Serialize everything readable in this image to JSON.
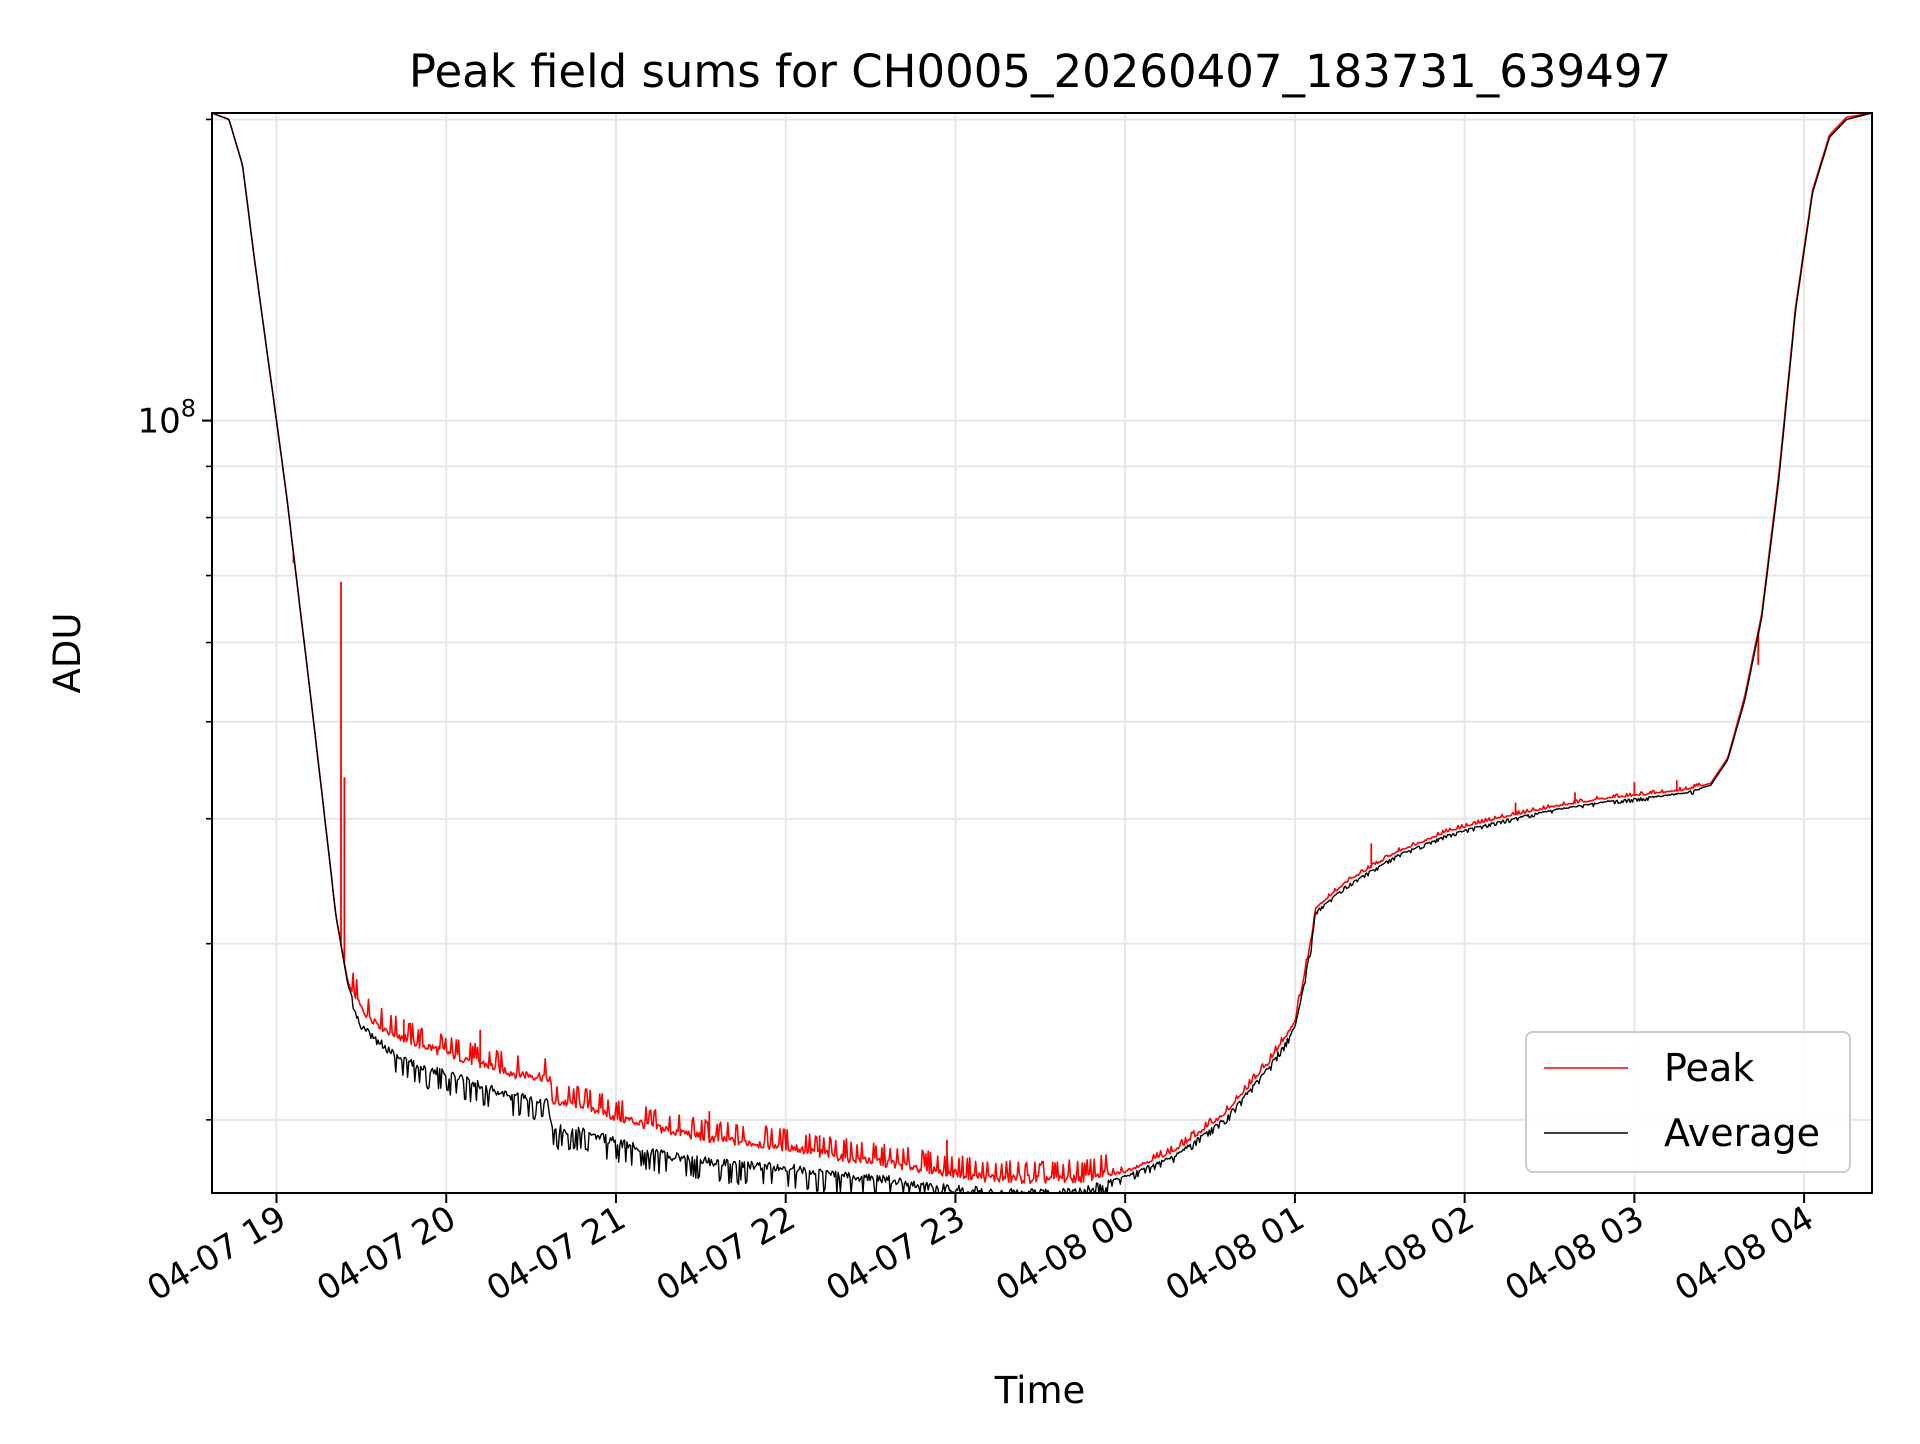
{
  "chart_data": {
    "type": "line",
    "title": "Peak field sums for CH0005_20260407_183731_639497",
    "xlabel": "Time",
    "ylabel": "ADU",
    "yscale": "log",
    "xlim_hours": [
      18.62,
      28.4
    ],
    "ylim": [
      16900000,
      203000000
    ],
    "x_ticks": [
      {
        "label": "04-07 19",
        "hours": 19
      },
      {
        "label": "04-07 20",
        "hours": 20
      },
      {
        "label": "04-07 21",
        "hours": 21
      },
      {
        "label": "04-07 22",
        "hours": 22
      },
      {
        "label": "04-07 23",
        "hours": 23
      },
      {
        "label": "04-08 00",
        "hours": 24
      },
      {
        "label": "04-08 01",
        "hours": 25
      },
      {
        "label": "04-08 02",
        "hours": 26
      },
      {
        "label": "04-08 03",
        "hours": 27
      },
      {
        "label": "04-08 04",
        "hours": 28
      }
    ],
    "y_major_tick": {
      "base": "10",
      "exponent": "8",
      "value": 100000000
    },
    "y_minor_ticks": [
      20000000,
      30000000,
      40000000,
      50000000,
      60000000,
      70000000,
      80000000,
      90000000,
      200000000
    ],
    "grid": true,
    "legend_position": "lower-right",
    "series": [
      {
        "name": "Peak",
        "color": "#ff0000",
        "x_hours": [
          18.62,
          18.72,
          18.8,
          18.87,
          18.93,
          19.0,
          19.06,
          19.12,
          19.19,
          19.25,
          19.3,
          19.35,
          19.42,
          19.5,
          19.65,
          19.85,
          20.1,
          20.4,
          20.6,
          20.62,
          20.8,
          21.0,
          21.3,
          21.6,
          22.0,
          22.3,
          22.6,
          22.9,
          23.2,
          23.5,
          23.75,
          24.0,
          24.3,
          24.6,
          24.85,
          25.0,
          25.05,
          25.1,
          25.12,
          25.3,
          25.6,
          25.9,
          26.2,
          26.5,
          26.8,
          27.1,
          27.3,
          27.45,
          27.55,
          27.65,
          27.75,
          27.85,
          27.95,
          28.05,
          28.15,
          28.25,
          28.4
        ],
        "values": [
          203000000,
          200000000,
          180000000,
          145000000,
          122000000,
          100000000,
          84000000,
          69000000,
          55000000,
          45000000,
          38000000,
          32000000,
          27500000,
          25500000,
          24300000,
          23500000,
          22800000,
          22000000,
          21800000,
          20600000,
          20500000,
          19900000,
          19300000,
          18900000,
          18600000,
          18200000,
          17900000,
          17600000,
          17300000,
          17250000,
          17300000,
          17700000,
          18600000,
          20300000,
          22800000,
          25000000,
          27500000,
          30500000,
          32500000,
          34500000,
          37000000,
          38800000,
          40000000,
          41000000,
          41800000,
          42300000,
          42700000,
          43400000,
          46000000,
          53000000,
          64000000,
          88000000,
          130000000,
          170000000,
          193000000,
          201000000,
          203000000
        ],
        "spikes": [
          {
            "hours": 19.1,
            "value": 72000000
          },
          {
            "hours": 19.38,
            "value": 69000000
          },
          {
            "hours": 19.4,
            "value": 44000000
          },
          {
            "hours": 19.75,
            "value": 25200000
          },
          {
            "hours": 20.2,
            "value": 24600000
          },
          {
            "hours": 21.55,
            "value": 20400000
          },
          {
            "hours": 22.2,
            "value": 19300000
          },
          {
            "hours": 22.95,
            "value": 19100000
          },
          {
            "hours": 25.45,
            "value": 37800000
          },
          {
            "hours": 26.3,
            "value": 41500000
          },
          {
            "hours": 26.65,
            "value": 42500000
          },
          {
            "hours": 27.0,
            "value": 43500000
          },
          {
            "hours": 27.25,
            "value": 43700000
          },
          {
            "hours": 27.73,
            "value": 57000000
          }
        ]
      },
      {
        "name": "Average",
        "color": "#000000",
        "x_hours": [
          18.62,
          18.72,
          18.8,
          18.87,
          18.93,
          19.0,
          19.06,
          19.12,
          19.19,
          19.25,
          19.3,
          19.35,
          19.42,
          19.5,
          19.65,
          19.85,
          20.1,
          20.4,
          20.6,
          20.62,
          20.8,
          21.0,
          21.3,
          21.6,
          22.0,
          22.3,
          22.6,
          22.9,
          23.2,
          23.5,
          23.75,
          24.0,
          24.3,
          24.6,
          24.85,
          25.0,
          25.05,
          25.1,
          25.12,
          25.3,
          25.6,
          25.9,
          26.2,
          26.5,
          26.8,
          27.1,
          27.3,
          27.45,
          27.55,
          27.65,
          27.75,
          27.85,
          27.95,
          28.05,
          28.15,
          28.25,
          28.4
        ],
        "values": [
          203000000,
          200000000,
          180000000,
          145000000,
          122000000,
          100000000,
          84000000,
          69000000,
          55000000,
          45000000,
          38000000,
          32000000,
          27300000,
          25000000,
          23800000,
          22800000,
          22200000,
          21300000,
          21100000,
          19800000,
          19700000,
          19200000,
          18600000,
          18300000,
          18100000,
          17800000,
          17600000,
          17300000,
          17100000,
          17050000,
          17150000,
          17600000,
          18500000,
          20200000,
          22700000,
          24800000,
          27200000,
          30300000,
          32300000,
          34300000,
          36800000,
          38600000,
          39800000,
          40800000,
          41600000,
          42100000,
          42500000,
          43200000,
          45800000,
          52500000,
          63500000,
          87000000,
          129000000,
          169000000,
          192000000,
          200000000,
          203000000
        ],
        "spikes": []
      }
    ]
  }
}
